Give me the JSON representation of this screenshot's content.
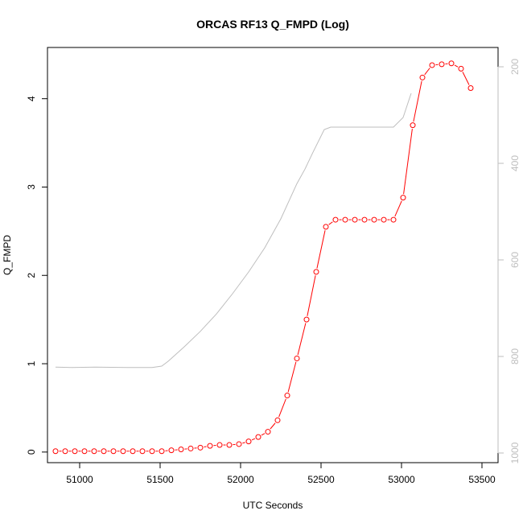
{
  "chart_data": {
    "type": "line",
    "title": "ORCAS RF13 Q_FMPD (Log)",
    "xlabel": "UTC Seconds",
    "ylabel": "Q_FMPD",
    "xlim": [
      50800,
      53600
    ],
    "ylim": [
      -0.12,
      4.58
    ],
    "y2lim": [
      1020,
      160
    ],
    "x_ticks": [
      51000,
      51500,
      52000,
      52500,
      53000,
      53500
    ],
    "y_ticks": [
      0,
      1,
      2,
      3,
      4
    ],
    "y2_ticks": [
      200,
      400,
      600,
      800,
      1000
    ],
    "grid": false,
    "series": [
      {
        "axis": "left",
        "color": "#ff0000",
        "marker": "circle-open",
        "x": [
          50850,
          50910,
          50970,
          51030,
          51090,
          51150,
          51210,
          51270,
          51330,
          51390,
          51450,
          51510,
          51570,
          51630,
          51690,
          51750,
          51810,
          51870,
          51930,
          51990,
          52050,
          52110,
          52170,
          52230,
          52290,
          52350,
          52410,
          52470,
          52530,
          52590,
          52650,
          52710,
          52770,
          52830,
          52890,
          52950,
          53010,
          53070,
          53130,
          53190,
          53250,
          53310,
          53370,
          53430
        ],
        "y": [
          0.01,
          0.01,
          0.01,
          0.01,
          0.01,
          0.01,
          0.01,
          0.01,
          0.01,
          0.01,
          0.01,
          0.01,
          0.02,
          0.03,
          0.04,
          0.05,
          0.07,
          0.08,
          0.08,
          0.09,
          0.12,
          0.17,
          0.23,
          0.36,
          0.64,
          1.06,
          1.5,
          2.04,
          2.55,
          2.63,
          2.63,
          2.63,
          2.63,
          2.63,
          2.63,
          2.63,
          2.88,
          3.7,
          4.24,
          4.38,
          4.39,
          4.4,
          4.34,
          4.12
        ]
      },
      {
        "axis": "right",
        "color": "#bebebe",
        "marker": "none",
        "x": [
          50850,
          50950,
          51100,
          51300,
          51450,
          51510,
          51550,
          51650,
          51750,
          51850,
          51950,
          52050,
          52150,
          52250,
          52350,
          52400,
          52450,
          52520,
          52560,
          52700,
          52800,
          52900,
          52950,
          53010,
          53060
        ],
        "y": [
          822,
          823,
          822,
          823,
          823,
          820,
          810,
          780,
          748,
          712,
          670,
          625,
          575,
          515,
          442,
          412,
          377,
          330,
          325,
          325,
          325,
          325,
          325,
          305,
          255
        ]
      }
    ]
  }
}
